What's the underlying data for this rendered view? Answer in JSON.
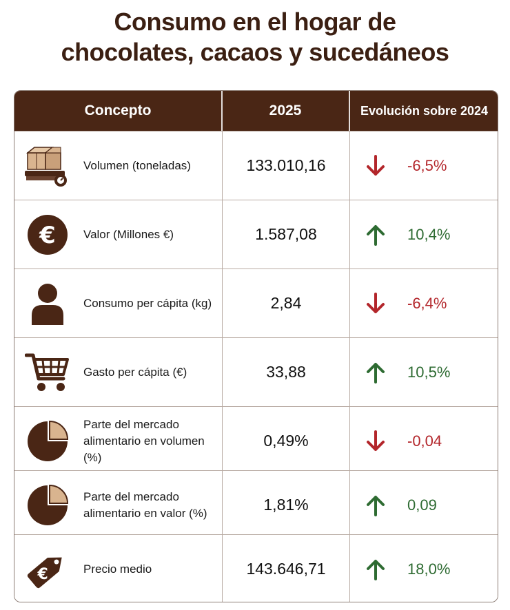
{
  "title": {
    "line1": "Consumo en el hogar de",
    "line2": "chocolates, cacaos y sucedáneos"
  },
  "table": {
    "headers": {
      "concept": "Concepto",
      "year": "2025",
      "evolution": "Evolución sobre 2024"
    },
    "rows": [
      {
        "icon": "boxes-scale-icon",
        "label": "Volumen (toneladas)",
        "value": "133.010,16",
        "direction": "down",
        "evolution": "-6,5%"
      },
      {
        "icon": "euro-icon",
        "label": "Valor (Millones €)",
        "value": "1.587,08",
        "direction": "up",
        "evolution": "10,4%"
      },
      {
        "icon": "person-icon",
        "label": "Consumo per cápita (kg)",
        "value": "2,84",
        "direction": "down",
        "evolution": "-6,4%"
      },
      {
        "icon": "shopping-cart-icon",
        "label": "Gasto per cápita (€)",
        "value": "33,88",
        "direction": "up",
        "evolution": "10,5%"
      },
      {
        "icon": "pie-chart-icon",
        "label": "Parte del mercado alimentario en volumen (%)",
        "value": "0,49%",
        "direction": "down",
        "evolution": "-0,04"
      },
      {
        "icon": "pie-chart-icon",
        "label": "Parte del mercado alimentario en valor (%)",
        "value": "1,81%",
        "direction": "up",
        "evolution": "0,09"
      },
      {
        "icon": "price-tag-euro-icon",
        "label": "Precio medio",
        "value": "143.646,71",
        "direction": "up",
        "evolution": "18,0%"
      }
    ]
  },
  "colors": {
    "header_bg": "#4a2615",
    "title": "#3b1f12",
    "icon": "#4a2615",
    "icon_light": "#d9b48f",
    "down": "#b3262b",
    "up": "#2e6b32"
  }
}
